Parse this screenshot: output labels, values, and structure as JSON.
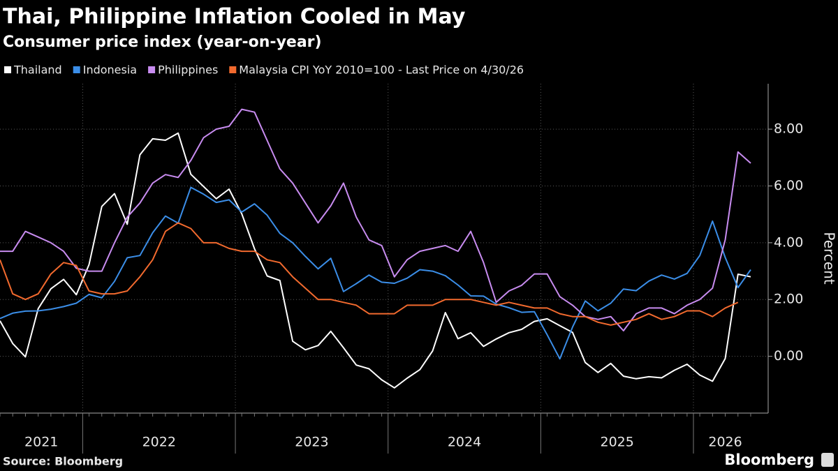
{
  "chart_data": {
    "type": "line",
    "title": "Thai, Philippine Inflation Cooled in May",
    "subtitle": "Consumer price index (year-on-year)",
    "y_label": "Percent",
    "source": "Source: Bloomberg",
    "logo": "Bloomberg",
    "categories": [
      "2021",
      "2021",
      "2021",
      "2021",
      "2021",
      "2021",
      "2021",
      "2022",
      "2022",
      "2022",
      "2022",
      "2022",
      "2022",
      "2022",
      "2022",
      "2022",
      "2022",
      "2022",
      "2022",
      "2023",
      "2023",
      "2023",
      "2023",
      "2023",
      "2023",
      "2023",
      "2023",
      "2023",
      "2023",
      "2023",
      "2023",
      "2024",
      "2024",
      "2024",
      "2024",
      "2024",
      "2024",
      "2024",
      "2024",
      "2024",
      "2024",
      "2024",
      "2024",
      "2025",
      "2025",
      "2025",
      "2025",
      "2025",
      "2025",
      "2025",
      "2025",
      "2025",
      "2025",
      "2025",
      "2025",
      "2026",
      "2026",
      "2026",
      "2026",
      "2026"
    ],
    "series": [
      {
        "name": "Thailand",
        "color": "#ffffff",
        "values": [
          1.25,
          0.45,
          -0.02,
          1.68,
          2.38,
          2.71,
          2.17,
          3.23,
          5.28,
          5.73,
          4.65,
          7.1,
          7.66,
          7.61,
          7.86,
          6.41,
          5.98,
          5.55,
          5.89,
          5.02,
          3.79,
          2.83,
          2.67,
          0.53,
          0.23,
          0.38,
          0.88,
          0.3,
          -0.31,
          -0.44,
          -0.83,
          -1.11,
          -0.77,
          -0.47,
          0.19,
          1.54,
          0.62,
          0.83,
          0.35,
          0.61,
          0.83,
          0.95,
          1.23,
          1.32,
          1.08,
          0.84,
          -0.22,
          -0.57,
          -0.25,
          -0.7,
          -0.79,
          -0.72,
          -0.76,
          -0.49,
          -0.28,
          -0.66,
          -0.88,
          -0.08,
          2.89,
          2.8
        ]
      },
      {
        "name": "Indonesia",
        "color": "#3b8ee8",
        "values": [
          1.33,
          1.52,
          1.59,
          1.6,
          1.66,
          1.75,
          1.87,
          2.18,
          2.06,
          2.64,
          3.47,
          3.55,
          4.35,
          4.94,
          4.69,
          5.95,
          5.71,
          5.42,
          5.51,
          5.08,
          5.37,
          4.97,
          4.33,
          4.0,
          3.52,
          3.08,
          3.45,
          2.28,
          2.56,
          2.86,
          2.61,
          2.57,
          2.75,
          3.05,
          3.0,
          2.84,
          2.51,
          2.13,
          2.12,
          1.84,
          1.71,
          1.55,
          1.57,
          0.76,
          -0.09,
          1.03,
          1.95,
          1.6,
          1.87,
          2.37,
          2.31,
          2.65,
          2.86,
          2.72,
          2.92,
          3.55,
          4.76,
          3.48,
          2.42,
          3.05
        ]
      },
      {
        "name": "Philippines",
        "color": "#c88cf0",
        "values": [
          3.7,
          3.7,
          4.4,
          4.2,
          4.0,
          3.7,
          3.1,
          3.0,
          3.0,
          4.0,
          4.9,
          5.4,
          6.1,
          6.4,
          6.3,
          6.9,
          7.7,
          8.0,
          8.1,
          8.7,
          8.6,
          7.6,
          6.6,
          6.1,
          5.4,
          4.7,
          5.3,
          6.1,
          4.9,
          4.1,
          3.9,
          2.8,
          3.4,
          3.7,
          3.8,
          3.9,
          3.7,
          4.4,
          3.3,
          1.9,
          2.3,
          2.5,
          2.9,
          2.9,
          2.1,
          1.8,
          1.4,
          1.3,
          1.4,
          0.9,
          1.5,
          1.7,
          1.7,
          1.5,
          1.8,
          2.0,
          2.4,
          4.1,
          7.2,
          6.8
        ]
      },
      {
        "name": "Malaysia CPI YoY 2010=100 - Last Price on 4/30/26",
        "color": "#f26a2e",
        "values": [
          3.4,
          2.2,
          2.0,
          2.2,
          2.9,
          3.3,
          3.2,
          2.3,
          2.2,
          2.2,
          2.3,
          2.8,
          3.4,
          4.4,
          4.7,
          4.5,
          4.0,
          4.0,
          3.8,
          3.7,
          3.7,
          3.4,
          3.3,
          2.8,
          2.4,
          2.0,
          2.0,
          1.9,
          1.8,
          1.5,
          1.5,
          1.5,
          1.8,
          1.8,
          1.8,
          2.0,
          2.0,
          2.0,
          1.9,
          1.8,
          1.9,
          1.8,
          1.7,
          1.7,
          1.5,
          1.4,
          1.4,
          1.2,
          1.1,
          1.2,
          1.3,
          1.5,
          1.3,
          1.4,
          1.6,
          1.6,
          1.4,
          1.7,
          1.9,
          null
        ]
      }
    ],
    "ylim": [
      -2,
      9.6
    ],
    "yticks": [
      {
        "value": 0,
        "label": "0.00"
      },
      {
        "value": 2,
        "label": "2.00"
      },
      {
        "value": 4,
        "label": "4.00"
      },
      {
        "value": 6,
        "label": "6.00"
      },
      {
        "value": 8,
        "label": "8.00"
      }
    ],
    "grid": true
  }
}
